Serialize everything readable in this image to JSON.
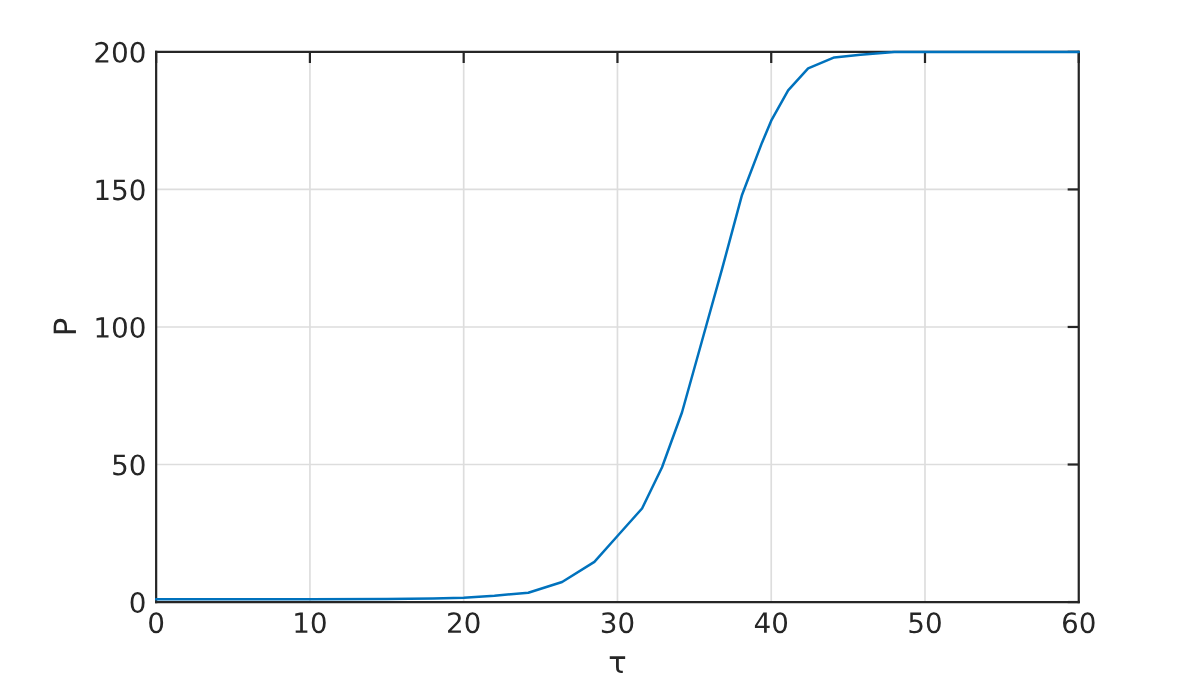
{
  "chart_data": {
    "type": "line",
    "xlabel": "τ",
    "ylabel": "P",
    "xlim": [
      0,
      60
    ],
    "ylim": [
      0,
      200
    ],
    "xticks": [
      0,
      10,
      20,
      30,
      40,
      50,
      60
    ],
    "yticks": [
      0,
      50,
      100,
      150,
      200
    ],
    "grid": true,
    "marker": "none",
    "line_style": "solid",
    "series": [
      {
        "color": "#0072bd",
        "x": [
          0,
          5,
          10,
          15,
          18,
          20,
          22,
          24.2,
          26.4,
          28.5,
          30,
          31.6,
          32.9,
          34.2,
          35.5,
          36.8,
          38.1,
          39.4,
          40,
          41.1,
          42.4,
          44.1,
          45.8,
          48,
          50,
          55,
          60
        ],
        "values": [
          1,
          1,
          1,
          1.1,
          1.3,
          1.6,
          2.3,
          3.4,
          7.3,
          14.6,
          24,
          34,
          49,
          69,
          95,
          121,
          148,
          167,
          175,
          186,
          194,
          198,
          199,
          200,
          200,
          200,
          200
        ]
      }
    ]
  }
}
